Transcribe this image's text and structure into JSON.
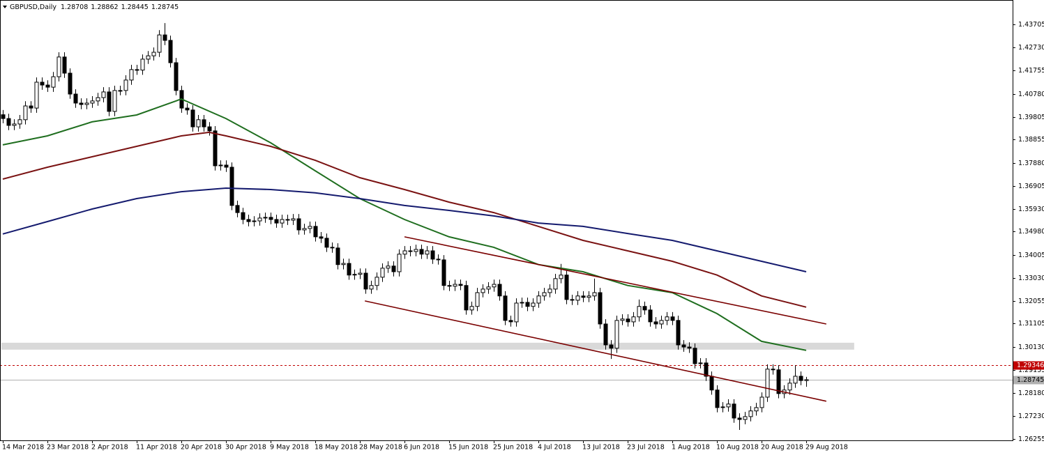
{
  "chart_data": {
    "type": "candlestick",
    "title": "GBPUSD,Daily",
    "categories": [
      "14 Mar 2018",
      null,
      null,
      null,
      null,
      null,
      null,
      null,
      "23 Mar 2018",
      null,
      null,
      null,
      null,
      null,
      null,
      null,
      "2 Apr 2018",
      null,
      null,
      null,
      null,
      null,
      null,
      null,
      "11 Apr 2018",
      null,
      null,
      null,
      null,
      null,
      null,
      null,
      "20 Apr 2018",
      null,
      null,
      null,
      null,
      null,
      null,
      null,
      "30 Apr 2018",
      null,
      null,
      null,
      null,
      null,
      null,
      null,
      "9 May 2018",
      null,
      null,
      null,
      null,
      null,
      null,
      null,
      "18 May 2018",
      null,
      null,
      null,
      null,
      null,
      null,
      null,
      "28 May 2018",
      null,
      null,
      null,
      null,
      null,
      null,
      null,
      "6 Jun 2018",
      null,
      null,
      null,
      null,
      null,
      null,
      null,
      "15 Jun 2018",
      null,
      null,
      null,
      null,
      null,
      null,
      null,
      "25 Jun 2018",
      null,
      null,
      null,
      null,
      null,
      null,
      null,
      "4 Jul 2018",
      null,
      null,
      null,
      null,
      null,
      null,
      null,
      "13 Jul 2018",
      null,
      null,
      null,
      null,
      null,
      null,
      null,
      "23 Jul 2018",
      null,
      null,
      null,
      null,
      null,
      null,
      null,
      "1 Aug 2018",
      null,
      null,
      null,
      null,
      null,
      null,
      null,
      "10 Aug 2018",
      null,
      null,
      null,
      null,
      null,
      null,
      null,
      "20 Aug 2018",
      null,
      null,
      null,
      null,
      null,
      null,
      null,
      "29 Aug 2018"
    ],
    "open": [
      1.399,
      1.3974,
      1.3945,
      1.3951,
      1.3969,
      1.4027,
      1.4018,
      1.4127,
      1.4115,
      1.4106,
      1.415,
      1.4233,
      1.4165,
      1.4077,
      1.4039,
      1.4033,
      1.4039,
      1.4048,
      1.4062,
      1.4086,
      1.4004,
      1.4092,
      1.4092,
      1.4136,
      1.418,
      1.4178,
      1.4224,
      1.4238,
      1.4253,
      1.4326,
      1.4303,
      1.4209,
      1.4092,
      1.4018,
      1.401,
      1.3939,
      1.3969,
      1.3939,
      1.3922,
      1.3775,
      1.3778,
      1.3769,
      1.3608,
      1.3578,
      1.3549,
      1.354,
      1.3543,
      1.3555,
      1.3558,
      1.3549,
      1.3534,
      1.3549,
      1.3546,
      1.3552,
      1.3505,
      1.3511,
      1.352,
      1.3476,
      1.347,
      1.3432,
      1.3429,
      1.3359,
      1.3364,
      1.3315,
      1.3318,
      1.3323,
      1.3256,
      1.3271,
      1.3306,
      1.3344,
      1.3353,
      1.3329,
      1.3403,
      1.3417,
      1.3414,
      1.3423,
      1.3403,
      1.3417,
      1.3382,
      1.3379,
      1.3271,
      1.3268,
      1.3276,
      1.3271,
      1.3168,
      1.3183,
      1.3241,
      1.3256,
      1.3265,
      1.3276,
      1.3227,
      1.3124,
      1.3118,
      1.3197,
      1.32,
      1.3183,
      1.3197,
      1.3227,
      1.3241,
      1.3256,
      1.33,
      1.3315,
      1.3212,
      1.3209,
      1.3227,
      1.3221,
      1.3227,
      1.3241,
      1.3109,
      1.3021,
      1.3007,
      1.3124,
      1.313,
      1.3118,
      1.3139,
      1.3183,
      1.3168,
      1.3118,
      1.3109,
      1.3124,
      1.3139,
      1.3124,
      1.3021,
      1.3012,
      1.3007,
      1.2942,
      1.2945,
      1.2889,
      1.2831,
      1.2757,
      1.276,
      1.2772,
      1.2713,
      1.2707,
      1.2719,
      1.2743,
      1.2757,
      1.2801,
      1.2919,
      1.2916,
      1.2816,
      1.2831,
      1.286,
      1.2889,
      1.28708
    ],
    "high": [
      1.401,
      1.3994,
      1.3971,
      1.3989,
      1.4047,
      1.4047,
      1.4147,
      1.4147,
      1.4135,
      1.417,
      1.4253,
      1.4253,
      1.4185,
      1.4097,
      1.4059,
      1.4059,
      1.4068,
      1.4082,
      1.4106,
      1.4106,
      1.4112,
      1.4112,
      1.4156,
      1.42,
      1.42,
      1.4244,
      1.4258,
      1.4273,
      1.4346,
      1.4376,
      1.4323,
      1.4229,
      1.4112,
      1.4038,
      1.403,
      1.3989,
      1.3989,
      1.3959,
      1.3942,
      1.3798,
      1.3798,
      1.3789,
      1.3628,
      1.3598,
      1.3569,
      1.3563,
      1.3575,
      1.3578,
      1.3578,
      1.3569,
      1.3569,
      1.3569,
      1.3572,
      1.3572,
      1.3531,
      1.354,
      1.354,
      1.3496,
      1.349,
      1.3452,
      1.3449,
      1.3384,
      1.3384,
      1.3338,
      1.3343,
      1.3343,
      1.3291,
      1.3326,
      1.3364,
      1.3373,
      1.3373,
      1.3423,
      1.3437,
      1.3437,
      1.3443,
      1.3443,
      1.3437,
      1.3437,
      1.3402,
      1.3399,
      1.3291,
      1.3296,
      1.3296,
      1.3291,
      1.3203,
      1.3261,
      1.3276,
      1.3285,
      1.3296,
      1.3296,
      1.3247,
      1.3144,
      1.3217,
      1.322,
      1.322,
      1.3217,
      1.3247,
      1.3261,
      1.3276,
      1.332,
      1.3362,
      1.3335,
      1.3232,
      1.3247,
      1.3247,
      1.3247,
      1.33,
      1.3261,
      1.3129,
      1.3041,
      1.3144,
      1.315,
      1.315,
      1.3159,
      1.3212,
      1.3203,
      1.3188,
      1.3138,
      1.3144,
      1.3159,
      1.3159,
      1.3144,
      1.3041,
      1.3032,
      1.3027,
      1.2965,
      1.2965,
      1.2909,
      1.2851,
      1.278,
      1.2792,
      1.2792,
      1.2733,
      1.2739,
      1.2763,
      1.2777,
      1.2821,
      1.2939,
      1.2939,
      1.2936,
      1.2851,
      1.288,
      1.2935,
      1.2909,
      1.28862
    ],
    "low": [
      1.3954,
      1.3925,
      1.3925,
      1.3931,
      1.3949,
      1.3998,
      1.3998,
      1.4095,
      1.4086,
      1.4086,
      1.413,
      1.4145,
      1.4057,
      1.4019,
      1.4013,
      1.4013,
      1.4019,
      1.4028,
      1.4042,
      1.3984,
      1.3984,
      1.4072,
      1.4072,
      1.4116,
      1.4158,
      1.4158,
      1.4204,
      1.4218,
      1.4233,
      1.4283,
      1.4189,
      1.4072,
      1.3998,
      1.399,
      1.3919,
      1.3919,
      1.3919,
      1.3902,
      1.3755,
      1.3755,
      1.3749,
      1.3588,
      1.3558,
      1.3529,
      1.352,
      1.352,
      1.3523,
      1.3535,
      1.3529,
      1.3514,
      1.3514,
      1.3526,
      1.3526,
      1.3485,
      1.3485,
      1.3491,
      1.3456,
      1.345,
      1.3412,
      1.3409,
      1.3339,
      1.3339,
      1.3295,
      1.3295,
      1.3298,
      1.3236,
      1.3236,
      1.3251,
      1.3286,
      1.3324,
      1.3309,
      1.3309,
      1.3383,
      1.3394,
      1.3394,
      1.3383,
      1.3383,
      1.3362,
      1.3359,
      1.3251,
      1.3248,
      1.3248,
      1.3251,
      1.3148,
      1.3148,
      1.3163,
      1.3221,
      1.3236,
      1.3245,
      1.3207,
      1.3104,
      1.3098,
      1.3098,
      1.3177,
      1.3163,
      1.3163,
      1.3177,
      1.3207,
      1.3221,
      1.3236,
      1.328,
      1.3192,
      1.3189,
      1.3189,
      1.3201,
      1.3201,
      1.3207,
      1.3089,
      1.3001,
      1.2962,
      1.2987,
      1.3104,
      1.3098,
      1.3098,
      1.3119,
      1.3148,
      1.3098,
      1.3089,
      1.3089,
      1.3104,
      1.3104,
      1.3001,
      1.2992,
      1.2987,
      1.2922,
      1.2922,
      1.2869,
      1.2811,
      1.2737,
      1.2737,
      1.274,
      1.2693,
      1.2663,
      1.2687,
      1.2699,
      1.2723,
      1.2737,
      1.2781,
      1.2896,
      1.2796,
      1.2796,
      1.2811,
      1.284,
      1.2851,
      1.28445
    ],
    "close": [
      1.3974,
      1.3945,
      1.3951,
      1.3969,
      1.4027,
      1.4018,
      1.4127,
      1.4115,
      1.4106,
      1.415,
      1.4233,
      1.4165,
      1.4077,
      1.4039,
      1.4033,
      1.4039,
      1.4048,
      1.4062,
      1.4086,
      1.4004,
      1.4092,
      1.4092,
      1.4136,
      1.418,
      1.4178,
      1.4224,
      1.4238,
      1.4253,
      1.4326,
      1.4303,
      1.4209,
      1.4092,
      1.4018,
      1.401,
      1.3939,
      1.3969,
      1.3939,
      1.3922,
      1.3775,
      1.3778,
      1.3769,
      1.3608,
      1.3578,
      1.3549,
      1.354,
      1.3543,
      1.3555,
      1.3558,
      1.3549,
      1.3534,
      1.3549,
      1.3546,
      1.3552,
      1.3505,
      1.3511,
      1.352,
      1.3476,
      1.347,
      1.3432,
      1.3429,
      1.3359,
      1.3364,
      1.3315,
      1.3318,
      1.3323,
      1.3256,
      1.3271,
      1.3306,
      1.3344,
      1.3353,
      1.3329,
      1.3403,
      1.3417,
      1.3414,
      1.3423,
      1.3403,
      1.3417,
      1.3382,
      1.3379,
      1.3271,
      1.3268,
      1.3276,
      1.3271,
      1.3168,
      1.3183,
      1.3241,
      1.3256,
      1.3265,
      1.3276,
      1.3227,
      1.3124,
      1.3118,
      1.3197,
      1.32,
      1.3183,
      1.3197,
      1.3227,
      1.3241,
      1.3256,
      1.33,
      1.3315,
      1.3212,
      1.3209,
      1.3227,
      1.3221,
      1.3227,
      1.3241,
      1.3109,
      1.3021,
      1.3007,
      1.3124,
      1.313,
      1.3118,
      1.3139,
      1.3183,
      1.3168,
      1.3118,
      1.3109,
      1.3124,
      1.3139,
      1.3124,
      1.3021,
      1.3012,
      1.3007,
      1.2942,
      1.2945,
      1.2889,
      1.2831,
      1.2757,
      1.276,
      1.2772,
      1.2713,
      1.2707,
      1.2719,
      1.2743,
      1.2757,
      1.2801,
      1.2919,
      1.2916,
      1.2816,
      1.2831,
      1.286,
      1.2889,
      1.2871,
      1.28745
    ],
    "bull_color": "#ffffff",
    "bear_color": "#000000",
    "moving_averages": [
      {
        "color": "#1f6e1f",
        "x": [
          0,
          8,
          16,
          24,
          32,
          40,
          48,
          56,
          64,
          72,
          80,
          88,
          96,
          104,
          112,
          120,
          128,
          136,
          144
        ],
        "values": [
          1.3863,
          1.3901,
          1.396,
          1.3989,
          1.4056,
          1.3974,
          1.3872,
          1.3754,
          1.3637,
          1.3549,
          1.3476,
          1.3432,
          1.3359,
          1.3329,
          1.3271,
          1.3241,
          1.3153,
          1.3036,
          1.2998
        ]
      },
      {
        "color": "#7a1212",
        "x": [
          0,
          8,
          16,
          24,
          32,
          37,
          40,
          48,
          56,
          64,
          72,
          80,
          88,
          96,
          104,
          112,
          120,
          128,
          136,
          144
        ],
        "values": [
          1.3719,
          1.3769,
          1.3813,
          1.3857,
          1.3901,
          1.3916,
          1.3901,
          1.3857,
          1.3798,
          1.3725,
          1.3675,
          1.3622,
          1.3578,
          1.352,
          1.3461,
          1.3417,
          1.3373,
          1.3315,
          1.3227,
          1.318
        ]
      },
      {
        "color": "#141a6e",
        "x": [
          0,
          8,
          16,
          24,
          32,
          40,
          48,
          56,
          64,
          72,
          80,
          88,
          96,
          104,
          112,
          120,
          128,
          136,
          144
        ],
        "values": [
          1.3488,
          1.354,
          1.3593,
          1.3637,
          1.3666,
          1.3681,
          1.3675,
          1.3661,
          1.3637,
          1.3608,
          1.3587,
          1.3564,
          1.3534,
          1.352,
          1.349,
          1.3461,
          1.3417,
          1.3373,
          1.3329
        ]
      }
    ],
    "trendlines": [
      {
        "color": "#7a0000",
        "x": [
          72,
          147.6
        ],
        "values": [
          1.3476,
          1.3109
        ]
      },
      {
        "color": "#7a0000",
        "x": [
          64.9,
          147.6
        ],
        "values": [
          1.3206,
          1.2784
        ]
      }
    ],
    "zones": [
      {
        "color": "#d9d9d9",
        "xlim": [
          -0.25,
          152.6
        ],
        "ylim": [
          1.3001,
          1.303
        ]
      }
    ],
    "price_lines": [
      {
        "value": 1.29346,
        "color": "#c00000",
        "style": "dashed"
      },
      {
        "value": 1.28745,
        "color": "#b0b0b0",
        "style": "solid"
      }
    ],
    "xlim": [
      -0.5,
      181
    ],
    "ylim": [
      1.2619,
      1.4473
    ],
    "yticks": [
      1.43705,
      {
        "value": 1.4273,
        "label": "1.42730"
      },
      1.41755,
      {
        "value": 1.4078,
        "label": "1.40780"
      },
      1.39805,
      1.38855,
      {
        "value": 1.3788,
        "label": "1.37880"
      },
      1.36905,
      {
        "value": 1.3593,
        "label": "1.35930"
      },
      {
        "value": 1.3498,
        "label": "1.34980"
      },
      1.34005,
      {
        "value": 1.3303,
        "label": "1.33030"
      },
      1.32055,
      1.31105,
      {
        "value": 1.3013,
        "label": "1.30130"
      },
      1.29155,
      {
        "value": 1.2818,
        "label": "1.28180"
      },
      {
        "value": 1.2723,
        "label": "1.27230"
      },
      1.26255
    ]
  }
}
